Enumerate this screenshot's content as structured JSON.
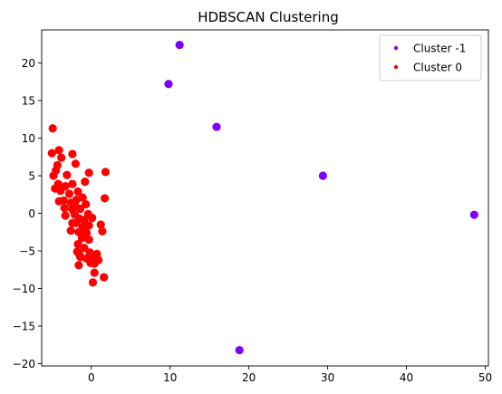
{
  "chart_data": {
    "type": "scatter",
    "title": "HDBSCAN Clustering",
    "xlabel": "",
    "ylabel": "",
    "xlim": [
      -6.3,
      50.4
    ],
    "ylim": [
      -20.3,
      24.4
    ],
    "xticks": [
      0,
      10,
      20,
      30,
      40,
      50
    ],
    "yticks": [
      -20,
      -15,
      -10,
      -5,
      0,
      5,
      10,
      15,
      20
    ],
    "grid": false,
    "legend_position": "top-right",
    "series": [
      {
        "name": "Cluster -1",
        "color": "#8000ff",
        "points": [
          [
            11.2,
            22.4
          ],
          [
            9.8,
            17.2
          ],
          [
            15.9,
            11.5
          ],
          [
            29.4,
            5.0
          ],
          [
            48.6,
            -0.2
          ],
          [
            18.8,
            -18.2
          ]
        ]
      },
      {
        "name": "Cluster 0",
        "color": "#ff0000",
        "points": [
          [
            -4.9,
            11.3
          ],
          [
            -5.0,
            8.0
          ],
          [
            -4.1,
            8.4
          ],
          [
            -2.4,
            7.9
          ],
          [
            -3.8,
            7.4
          ],
          [
            -4.3,
            6.4
          ],
          [
            -4.5,
            5.7
          ],
          [
            -2.0,
            6.6
          ],
          [
            -4.8,
            5.0
          ],
          [
            -3.1,
            5.1
          ],
          [
            -0.3,
            5.4
          ],
          [
            1.8,
            5.5
          ],
          [
            -4.2,
            3.9
          ],
          [
            -3.3,
            3.6
          ],
          [
            -2.4,
            3.9
          ],
          [
            -0.8,
            4.2
          ],
          [
            -4.6,
            3.3
          ],
          [
            -3.9,
            3.0
          ],
          [
            -2.8,
            2.6
          ],
          [
            -1.7,
            2.9
          ],
          [
            -1.1,
            2.1
          ],
          [
            -3.5,
            1.7
          ],
          [
            -2.6,
            1.4
          ],
          [
            -1.9,
            1.8
          ],
          [
            -4.1,
            1.6
          ],
          [
            -2.0,
            0.9
          ],
          [
            -0.7,
            1.2
          ],
          [
            -3.4,
            0.7
          ],
          [
            -2.4,
            0.5
          ],
          [
            -1.4,
            0.6
          ],
          [
            -3.3,
            -0.3
          ],
          [
            -2.1,
            -0.2
          ],
          [
            -0.4,
            -0.1
          ],
          [
            1.7,
            2.0
          ],
          [
            -1.5,
            -0.7
          ],
          [
            -0.9,
            -0.9
          ],
          [
            -1.9,
            -1.3
          ],
          [
            -1.1,
            -1.8
          ],
          [
            -0.3,
            -1.6
          ],
          [
            1.2,
            -1.5
          ],
          [
            -2.6,
            -2.3
          ],
          [
            -1.6,
            -2.5
          ],
          [
            -0.6,
            -2.6
          ],
          [
            1.4,
            -2.4
          ],
          [
            -1.2,
            -3.3
          ],
          [
            -0.3,
            -3.5
          ],
          [
            -1.7,
            -4.1
          ],
          [
            -0.9,
            -4.6
          ],
          [
            -1.8,
            -5.1
          ],
          [
            -0.2,
            -5.2
          ],
          [
            0.7,
            -5.4
          ],
          [
            -1.4,
            -5.8
          ],
          [
            -0.6,
            -6.0
          ],
          [
            0.3,
            -6.1
          ],
          [
            0.9,
            -6.2
          ],
          [
            -0.1,
            -6.6
          ],
          [
            -1.6,
            -6.9
          ],
          [
            0.4,
            -6.7
          ],
          [
            0.4,
            -7.9
          ],
          [
            1.6,
            -8.5
          ],
          [
            0.2,
            -9.2
          ],
          [
            0.6,
            -5.9
          ],
          [
            -1.5,
            -5.5
          ],
          [
            -2.4,
            -1.3
          ],
          [
            0.1,
            -0.6
          ]
        ]
      }
    ]
  }
}
